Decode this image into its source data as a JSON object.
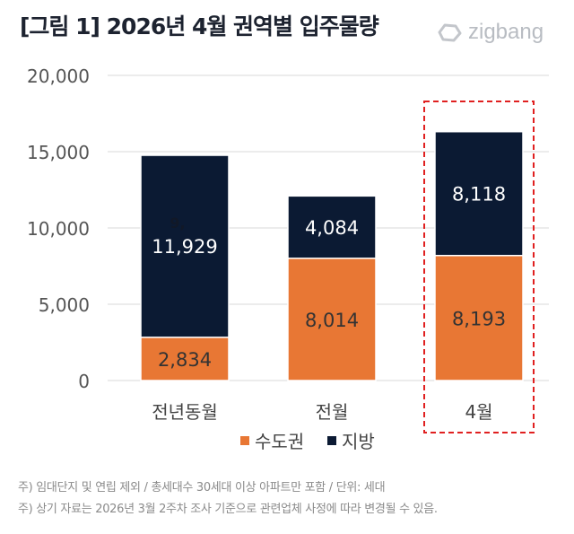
{
  "header": {
    "title": "[그림 1] 2026년  4월 권역별 입주물량",
    "logo_text": "zigbang"
  },
  "chart_data": {
    "type": "bar",
    "stacked": true,
    "title": "[그림 1] 2026년  4월 권역별 입주물량",
    "categories": [
      "전년동월",
      "전월",
      "4월"
    ],
    "series": [
      {
        "name": "수도권",
        "values": [
          2834,
          8014,
          8193
        ],
        "color": "#e87734"
      },
      {
        "name": "지방",
        "values": [
          11929,
          4084,
          8118
        ],
        "color": "#0b1a33"
      }
    ],
    "ylim": [
      0,
      20000
    ],
    "yticks": [
      "0",
      "5,000",
      "10,000",
      "15,000",
      "20,000"
    ],
    "grid": true,
    "legend": "bottom",
    "highlight_category": "4월",
    "highlight_color": "#e02020",
    "stray_label": "9,"
  },
  "notes": [
    "주) 임대단지 및 연립 제외 / 총세대수 30세대 이상 아파트만 포함 / 단위: 세대",
    "주) 상기 자료는 2026년 3월 2주차 조사 기준으로 관련업체 사정에 따라 변경될 수 있음."
  ]
}
